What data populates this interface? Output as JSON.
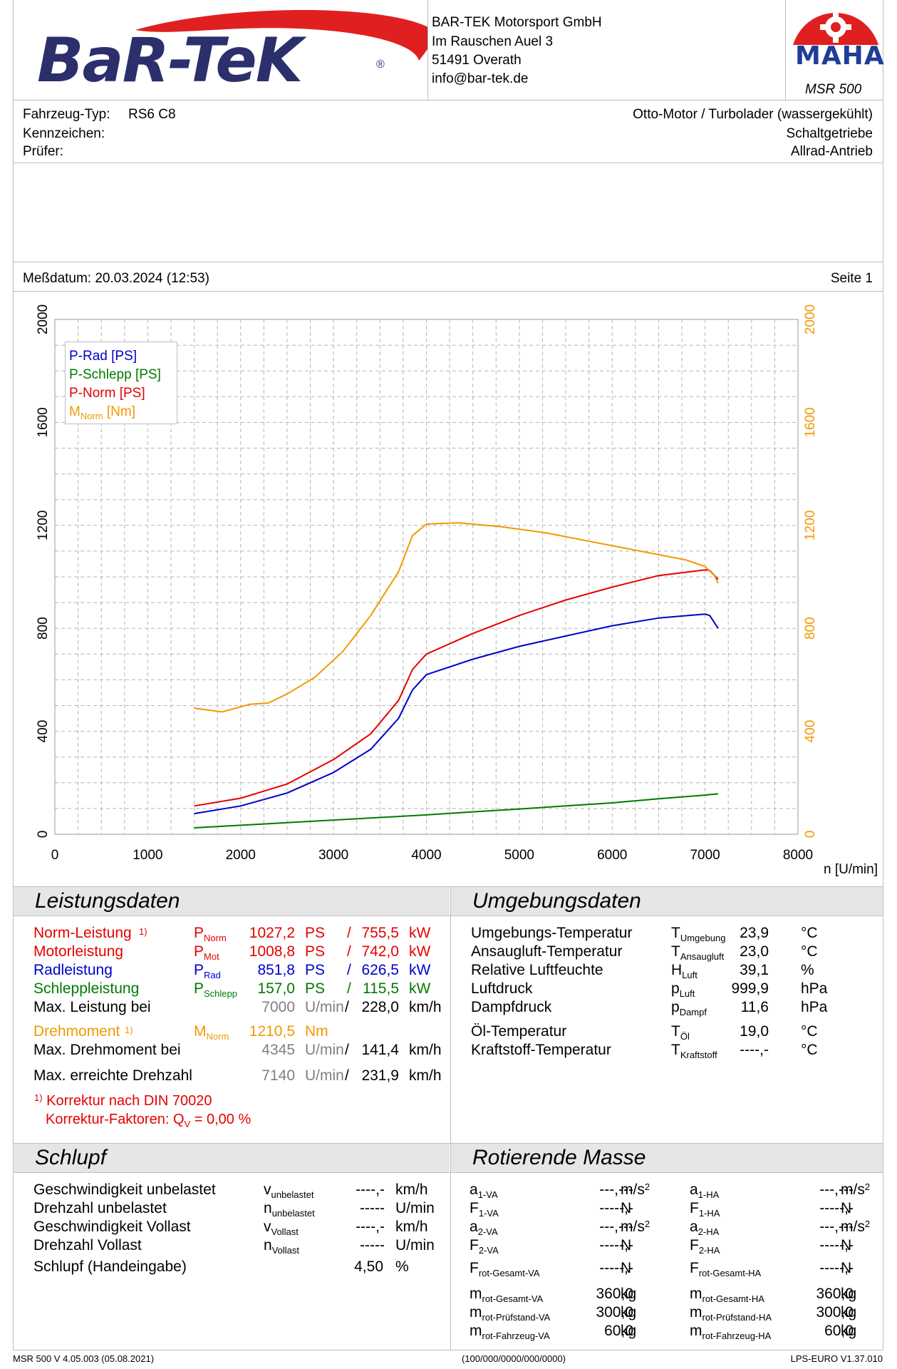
{
  "header": {
    "company": "BAR-TEK Motorsport GmbH",
    "street": "Im Rauschen Auel 3",
    "city": "51491 Overath",
    "email": "info@bar-tek.de",
    "logo_text": "BaR-TeK",
    "logo_reg": "®",
    "maha_text": "MAHA",
    "maha_model": "MSR 500"
  },
  "vehicle": {
    "type_label": "Fahrzeug-Typ:",
    "type_value": "RS6 C8",
    "plate_label": "Kennzeichen:",
    "tester_label": "Prüfer:",
    "engine": "Otto-Motor / Turbolader (wassergekühlt)",
    "gearbox": "Schaltgetriebe",
    "drive": "Allrad-Antrieb"
  },
  "meta": {
    "date_label": "Meßdatum: 20.03.2024 (12:53)",
    "page_label": "Seite 1"
  },
  "chart_data": {
    "type": "line",
    "xlabel": "n [U/min]",
    "xlim": [
      0,
      8000
    ],
    "ylim": [
      0,
      2000
    ],
    "x_ticks": [
      "0",
      "1000",
      "2000",
      "3000",
      "4000",
      "5000",
      "6000",
      "7000",
      "8000"
    ],
    "y_ticks_left": [
      "0",
      "400",
      "800",
      "1200",
      "1600",
      "2000"
    ],
    "y_ticks_right": [
      "0",
      "400",
      "800",
      "1200",
      "1600",
      "2000"
    ],
    "grid": true,
    "legend_position": "top-left",
    "legend": [
      {
        "name": "P-Rad [PS]",
        "color": "#0000cc"
      },
      {
        "name": "P-Schlepp [PS]",
        "color": "#007a00"
      },
      {
        "name": "P-Norm [PS]",
        "color": "#e60000"
      },
      {
        "name_main": "M",
        "name_sub": "Norm",
        "name_unit": "[Nm]",
        "color": "#f29900"
      }
    ],
    "series": [
      {
        "key": "rad",
        "color": "#0000cc",
        "points": [
          [
            1500,
            80
          ],
          [
            2000,
            110
          ],
          [
            2500,
            160
          ],
          [
            3000,
            240
          ],
          [
            3400,
            330
          ],
          [
            3700,
            450
          ],
          [
            3850,
            560
          ],
          [
            4000,
            620
          ],
          [
            4500,
            680
          ],
          [
            5000,
            730
          ],
          [
            5500,
            770
          ],
          [
            6000,
            810
          ],
          [
            6500,
            840
          ],
          [
            7000,
            855
          ],
          [
            7050,
            850
          ],
          [
            7140,
            800
          ]
        ]
      },
      {
        "key": "schlepp",
        "color": "#007a00",
        "points": [
          [
            1500,
            25
          ],
          [
            2000,
            35
          ],
          [
            2500,
            45
          ],
          [
            3000,
            55
          ],
          [
            3500,
            65
          ],
          [
            4000,
            75
          ],
          [
            4500,
            87
          ],
          [
            5000,
            98
          ],
          [
            5500,
            110
          ],
          [
            6000,
            122
          ],
          [
            6500,
            138
          ],
          [
            7000,
            152
          ],
          [
            7140,
            157
          ]
        ]
      },
      {
        "key": "norm",
        "color": "#e60000",
        "points": [
          [
            1500,
            110
          ],
          [
            2000,
            140
          ],
          [
            2500,
            195
          ],
          [
            3000,
            290
          ],
          [
            3400,
            390
          ],
          [
            3700,
            520
          ],
          [
            3850,
            640
          ],
          [
            4000,
            700
          ],
          [
            4500,
            780
          ],
          [
            5000,
            850
          ],
          [
            5500,
            910
          ],
          [
            6000,
            960
          ],
          [
            6500,
            1005
          ],
          [
            7000,
            1027
          ],
          [
            7050,
            1025
          ],
          [
            7140,
            990
          ]
        ]
      },
      {
        "key": "moment",
        "color": "#f29900",
        "points": [
          [
            1500,
            490
          ],
          [
            1800,
            475
          ],
          [
            2100,
            505
          ],
          [
            2300,
            510
          ],
          [
            2500,
            545
          ],
          [
            2800,
            610
          ],
          [
            3100,
            710
          ],
          [
            3400,
            850
          ],
          [
            3700,
            1020
          ],
          [
            3850,
            1160
          ],
          [
            4000,
            1205
          ],
          [
            4345,
            1210
          ],
          [
            4800,
            1195
          ],
          [
            5300,
            1170
          ],
          [
            5800,
            1135
          ],
          [
            6300,
            1100
          ],
          [
            6800,
            1065
          ],
          [
            7000,
            1040
          ],
          [
            7100,
            1005
          ],
          [
            7140,
            975
          ]
        ]
      }
    ]
  },
  "leistung": {
    "title": "Leistungsdaten",
    "rows": [
      {
        "label": "Norm-Leistung",
        "fn": "1)",
        "sym": "P",
        "sub": "Norm",
        "v1": "1027,2",
        "u1": "PS",
        "sep": "/",
        "v2": "755,5",
        "u2": "kW",
        "color": "red"
      },
      {
        "label": "Motorleistung",
        "sym": "P",
        "sub": "Mot",
        "v1": "1008,8",
        "u1": "PS",
        "sep": "/",
        "v2": "742,0",
        "u2": "kW",
        "color": "red"
      },
      {
        "label": "Radleistung",
        "sym": "P",
        "sub": "Rad",
        "v1": "851,8",
        "u1": "PS",
        "sep": "/",
        "v2": "626,5",
        "u2": "kW",
        "color": "blue"
      },
      {
        "label": "Schleppleistung",
        "sym": "P",
        "sub": "Schlepp",
        "v1": "157,0",
        "u1": "PS",
        "sep": "/",
        "v2": "115,5",
        "u2": "kW",
        "color": "green"
      },
      {
        "label": "Max. Leistung bei",
        "v1": "7000",
        "u1": "U/min",
        "sep": "/",
        "v2": "228,0",
        "u2": "km/h",
        "color": "grey"
      },
      {
        "label": "Drehmoment",
        "fn": "1)",
        "sym": "M",
        "sub": "Norm",
        "v1": "1210,5",
        "u1": "Nm",
        "color": "orange"
      },
      {
        "label": "Max. Drehmoment bei",
        "v1": "4345",
        "u1": "U/min",
        "sep": "/",
        "v2": "141,4",
        "u2": "km/h",
        "color": "grey"
      },
      {
        "label": "Max. erreichte Drehzahl",
        "v1": "7140",
        "u1": "U/min",
        "sep": "/",
        "v2": "231,9",
        "u2": "km/h",
        "color": "grey"
      }
    ],
    "footnote_mark": "1)",
    "footnote1": "Korrektur nach DIN 70020",
    "footnote2": "Korrektur-Faktoren: Q",
    "footnote2_sub": "V",
    "footnote2_value": "=   0,00 %"
  },
  "umgebung": {
    "title": "Umgebungsdaten",
    "rows": [
      {
        "label": "Umgebungs-Temperatur",
        "sym": "T",
        "sub": "Umgebung",
        "val": "23,9",
        "unit": "°C"
      },
      {
        "label": "Ansaugluft-Temperatur",
        "sym": "T",
        "sub": "Ansaugluft",
        "val": "23,0",
        "unit": "°C"
      },
      {
        "label": "Relative Luftfeuchte",
        "sym": "H",
        "sub": "Luft",
        "val": "39,1",
        "unit": "%"
      },
      {
        "label": "Luftdruck",
        "sym": "p",
        "sub": "Luft",
        "val": "999,9",
        "unit": "hPa"
      },
      {
        "label": "Dampfdruck",
        "sym": "p",
        "sub": "Dampf",
        "val": "11,6",
        "unit": "hPa"
      },
      {
        "label": "Öl-Temperatur",
        "sym": "T",
        "sub": "Öl",
        "val": "19,0",
        "unit": "°C"
      },
      {
        "label": "Kraftstoff-Temperatur",
        "sym": "T",
        "sub": "Kraftstoff",
        "val": "----,-",
        "unit": "°C"
      }
    ]
  },
  "schlupf": {
    "title": "Schlupf",
    "rows": [
      {
        "label": "Geschwindigkeit unbelastet",
        "sym": "v",
        "sub": "unbelastet",
        "val": "----,-",
        "unit": "km/h"
      },
      {
        "label": "Drehzahl unbelastet",
        "sym": "n",
        "sub": "unbelastet",
        "val": "-----",
        "unit": "U/min"
      },
      {
        "label": "Geschwindigkeit Vollast",
        "sym": "v",
        "sub": "Vollast",
        "val": "----,-",
        "unit": "km/h"
      },
      {
        "label": "Drehzahl Vollast",
        "sym": "n",
        "sub": "Vollast",
        "val": "-----",
        "unit": "U/min"
      }
    ],
    "manual_label": "Schlupf (Handeingabe)",
    "manual_val": "4,50",
    "manual_unit": "%"
  },
  "rot": {
    "title": "Rotierende Masse",
    "va": [
      {
        "sym": "a",
        "sub": "1-VA",
        "val": "---,---",
        "unit": "m/s",
        "sup": "2"
      },
      {
        "sym": "F",
        "sub": "1-VA",
        "val": "-----,-",
        "unit": "N"
      },
      {
        "sym": "a",
        "sub": "2-VA",
        "val": "---,---",
        "unit": "m/s",
        "sup": "2"
      },
      {
        "sym": "F",
        "sub": "2-VA",
        "val": "-----,-",
        "unit": "N"
      },
      {
        "sym": "F",
        "sub": "rot-Gesamt-VA",
        "val": "-----,-",
        "unit": "N"
      },
      {
        "sym": "m",
        "sub": "rot-Gesamt-VA",
        "val": "360,0",
        "unit": "kg"
      },
      {
        "sym": "m",
        "sub": "rot-Prüfstand-VA",
        "val": "300,0",
        "unit": "kg"
      },
      {
        "sym": "m",
        "sub": "rot-Fahrzeug-VA",
        "val": "60,0",
        "unit": "kg"
      }
    ],
    "ha": [
      {
        "sym": "a",
        "sub": "1-HA",
        "val": "---,---",
        "unit": "m/s",
        "sup": "2"
      },
      {
        "sym": "F",
        "sub": "1-HA",
        "val": "-----,-",
        "unit": "N"
      },
      {
        "sym": "a",
        "sub": "2-HA",
        "val": "---,---",
        "unit": "m/s",
        "sup": "2"
      },
      {
        "sym": "F",
        "sub": "2-HA",
        "val": "-----,-",
        "unit": "N"
      },
      {
        "sym": "F",
        "sub": "rot-Gesamt-HA",
        "val": "-----,-",
        "unit": "N"
      },
      {
        "sym": "m",
        "sub": "rot-Gesamt-HA",
        "val": "360,0",
        "unit": "kg"
      },
      {
        "sym": "m",
        "sub": "rot-Prüfstand-HA",
        "val": "300,0",
        "unit": "kg"
      },
      {
        "sym": "m",
        "sub": "rot-Fahrzeug-HA",
        "val": "60,0",
        "unit": "kg"
      }
    ]
  },
  "footer": {
    "left": "MSR 500 V 4.05.003 (05.08.2021)",
    "center": "(100/000/0000/000/0000)",
    "right": "LPS-EURO V1.37.010"
  },
  "colors": {
    "red": "#e60000",
    "blue": "#0000cc",
    "green": "#007a00",
    "orange": "#f29900",
    "grey": "#808080",
    "logo_navy": "#2b2f6b",
    "logo_red": "#e02020",
    "maha_blue": "#1f3d99"
  }
}
